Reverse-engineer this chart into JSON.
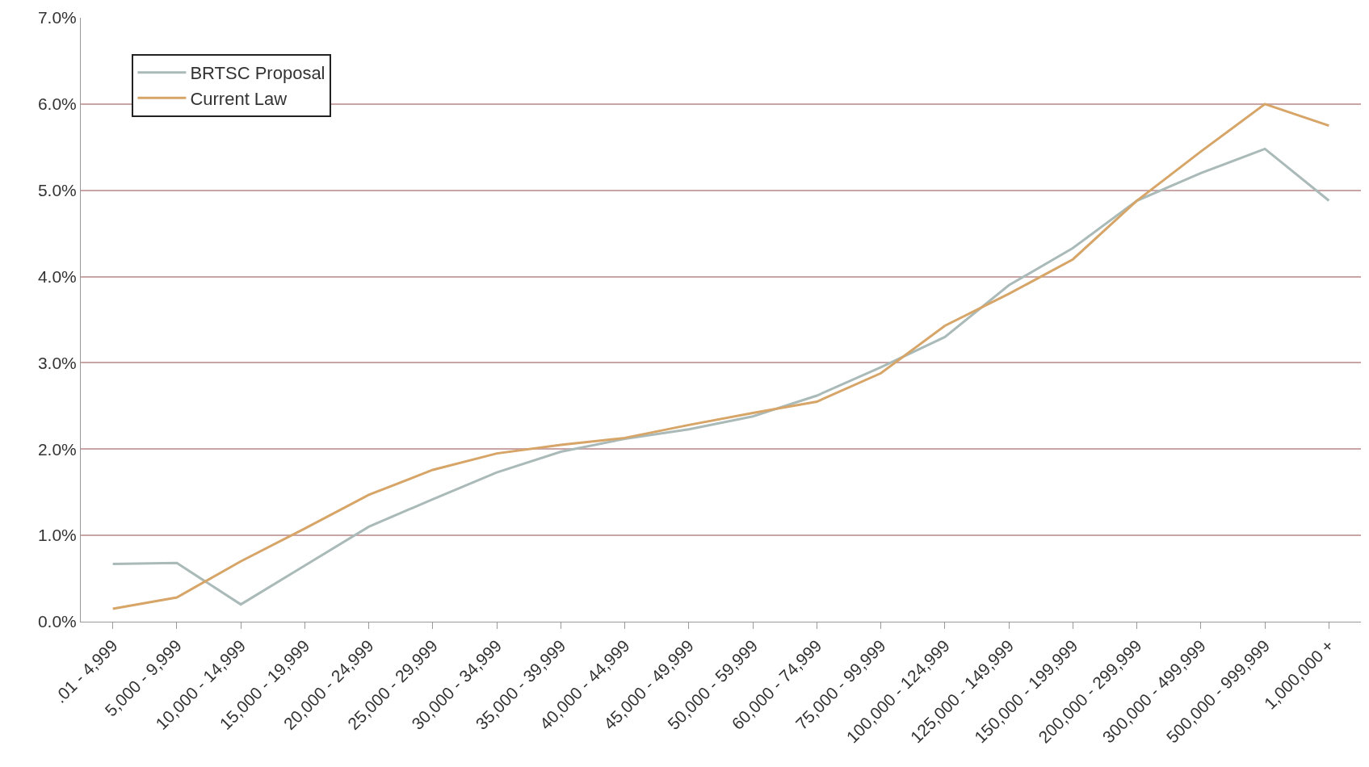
{
  "chart_data": {
    "type": "line",
    "categories": [
      ".01 - 4,999",
      "5,000 - 9,999",
      "10,000 - 14,999",
      "15,000 - 19,999",
      "20,000 - 24,999",
      "25,000 - 29,999",
      "30,000 - 34,999",
      "35,000 - 39,999",
      "40,000 - 44,999",
      "45,000 - 49,999",
      "50,000 - 59,999",
      "60,000 - 74,999",
      "75,000 - 99,999",
      "100,000 - 124,999",
      "125,000 - 149,999",
      "150,000 - 199,999",
      "200,000 - 299,999",
      "300,000 - 499,999",
      "500,000 - 999,999",
      "1,000,000 +"
    ],
    "series": [
      {
        "name": "BRTSC Proposal",
        "color": "#a9bab8",
        "values": [
          0.67,
          0.68,
          0.2,
          0.65,
          1.1,
          1.42,
          1.73,
          1.97,
          2.12,
          2.23,
          2.38,
          2.62,
          2.95,
          3.3,
          3.9,
          4.33,
          4.88,
          5.2,
          5.48,
          4.88
        ]
      },
      {
        "name": "Current Law",
        "color": "#d6a567",
        "values": [
          0.15,
          0.28,
          0.7,
          1.08,
          1.47,
          1.76,
          1.95,
          2.05,
          2.13,
          2.28,
          2.42,
          2.55,
          2.88,
          3.43,
          3.8,
          4.2,
          4.88,
          5.45,
          6.0,
          5.75
        ]
      }
    ],
    "ylim": [
      0,
      7
    ],
    "yticks": [
      {
        "value": 0,
        "label": "0.0%"
      },
      {
        "value": 1,
        "label": "1.0%"
      },
      {
        "value": 2,
        "label": "2.0%"
      },
      {
        "value": 3,
        "label": "3.0%"
      },
      {
        "value": 4,
        "label": "4.0%"
      },
      {
        "value": 5,
        "label": "5.0%"
      },
      {
        "value": 6,
        "label": "6.0%"
      },
      {
        "value": 7,
        "label": "7.0%"
      }
    ],
    "grid": "y",
    "legend": "top left",
    "marker": "none",
    "line_style": "solid"
  }
}
